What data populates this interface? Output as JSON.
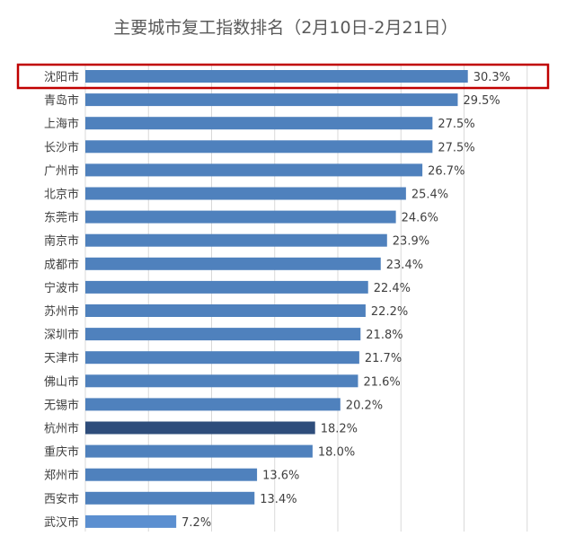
{
  "chart_data": {
    "type": "bar",
    "orientation": "horizontal",
    "title": "主要城市复工指数排名（2月10日-2月21日）",
    "categories": [
      "沈阳市",
      "青岛市",
      "上海市",
      "长沙市",
      "广州市",
      "北京市",
      "东莞市",
      "南京市",
      "成都市",
      "宁波市",
      "苏州市",
      "深圳市",
      "天津市",
      "佛山市",
      "无锡市",
      "杭州市",
      "重庆市",
      "郑州市",
      "西安市",
      "武汉市"
    ],
    "values": [
      30.3,
      29.5,
      27.5,
      27.5,
      26.7,
      25.4,
      24.6,
      23.9,
      23.4,
      22.4,
      22.2,
      21.8,
      21.7,
      21.6,
      20.2,
      18.2,
      18.0,
      13.6,
      13.4,
      7.2
    ],
    "value_labels": [
      "30.3%",
      "29.5%",
      "27.5%",
      "27.5%",
      "26.7%",
      "25.4%",
      "24.6%",
      "23.9%",
      "23.4%",
      "22.4%",
      "22.2%",
      "21.8%",
      "21.7%",
      "21.6%",
      "20.2%",
      "18.2%",
      "18.0%",
      "13.6%",
      "13.4%",
      "7.2%"
    ],
    "xlim": [
      0,
      35
    ],
    "grid": true,
    "highlight_category": "沈阳市",
    "colors": {
      "bar": "#4f81bd",
      "bar_dark": "#2e4d7b",
      "bar_light": "#5b8fd0",
      "highlight_box": "#c00000",
      "grid": "#d9d9d9"
    },
    "bar_color_by_category": {
      "杭州市": "#2e4d7b",
      "武汉市": "#5b8fd0"
    }
  }
}
